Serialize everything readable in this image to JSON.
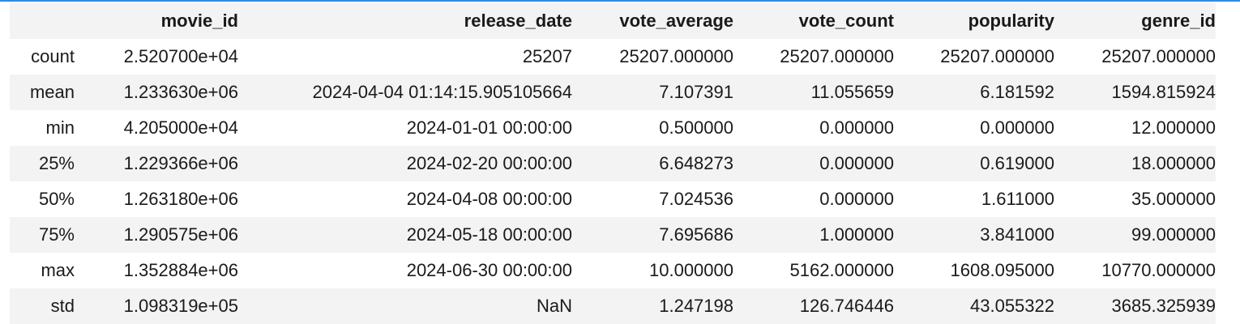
{
  "table": {
    "index_header": "",
    "columns": [
      "movie_id",
      "release_date",
      "vote_average",
      "vote_count",
      "popularity",
      "genre_id"
    ],
    "rows": [
      {
        "label": "count",
        "values": [
          "2.520700e+04",
          "25207",
          "25207.000000",
          "25207.000000",
          "25207.000000",
          "25207.000000"
        ]
      },
      {
        "label": "mean",
        "values": [
          "1.233630e+06",
          "2024-04-04 01:14:15.905105664",
          "7.107391",
          "11.055659",
          "6.181592",
          "1594.815924"
        ]
      },
      {
        "label": "min",
        "values": [
          "4.205000e+04",
          "2024-01-01 00:00:00",
          "0.500000",
          "0.000000",
          "0.000000",
          "12.000000"
        ]
      },
      {
        "label": "25%",
        "values": [
          "1.229366e+06",
          "2024-02-20 00:00:00",
          "6.648273",
          "0.000000",
          "0.619000",
          "18.000000"
        ]
      },
      {
        "label": "50%",
        "values": [
          "1.263180e+06",
          "2024-04-08 00:00:00",
          "7.024536",
          "0.000000",
          "1.611000",
          "35.000000"
        ]
      },
      {
        "label": "75%",
        "values": [
          "1.290575e+06",
          "2024-05-18 00:00:00",
          "7.695686",
          "1.000000",
          "3.841000",
          "99.000000"
        ]
      },
      {
        "label": "max",
        "values": [
          "1.352884e+06",
          "2024-06-30 00:00:00",
          "10.000000",
          "5162.000000",
          "1608.095000",
          "10770.000000"
        ]
      },
      {
        "label": "std",
        "values": [
          "1.098319e+05",
          "NaN",
          "1.247198",
          "126.746446",
          "43.055322",
          "3685.325939"
        ]
      }
    ]
  },
  "colors": {
    "accent_rule": "#2f8be0",
    "header_bg": "#f3f3f3",
    "stripe_bg": "#f3f3f3",
    "text": "#1a1a1a"
  }
}
